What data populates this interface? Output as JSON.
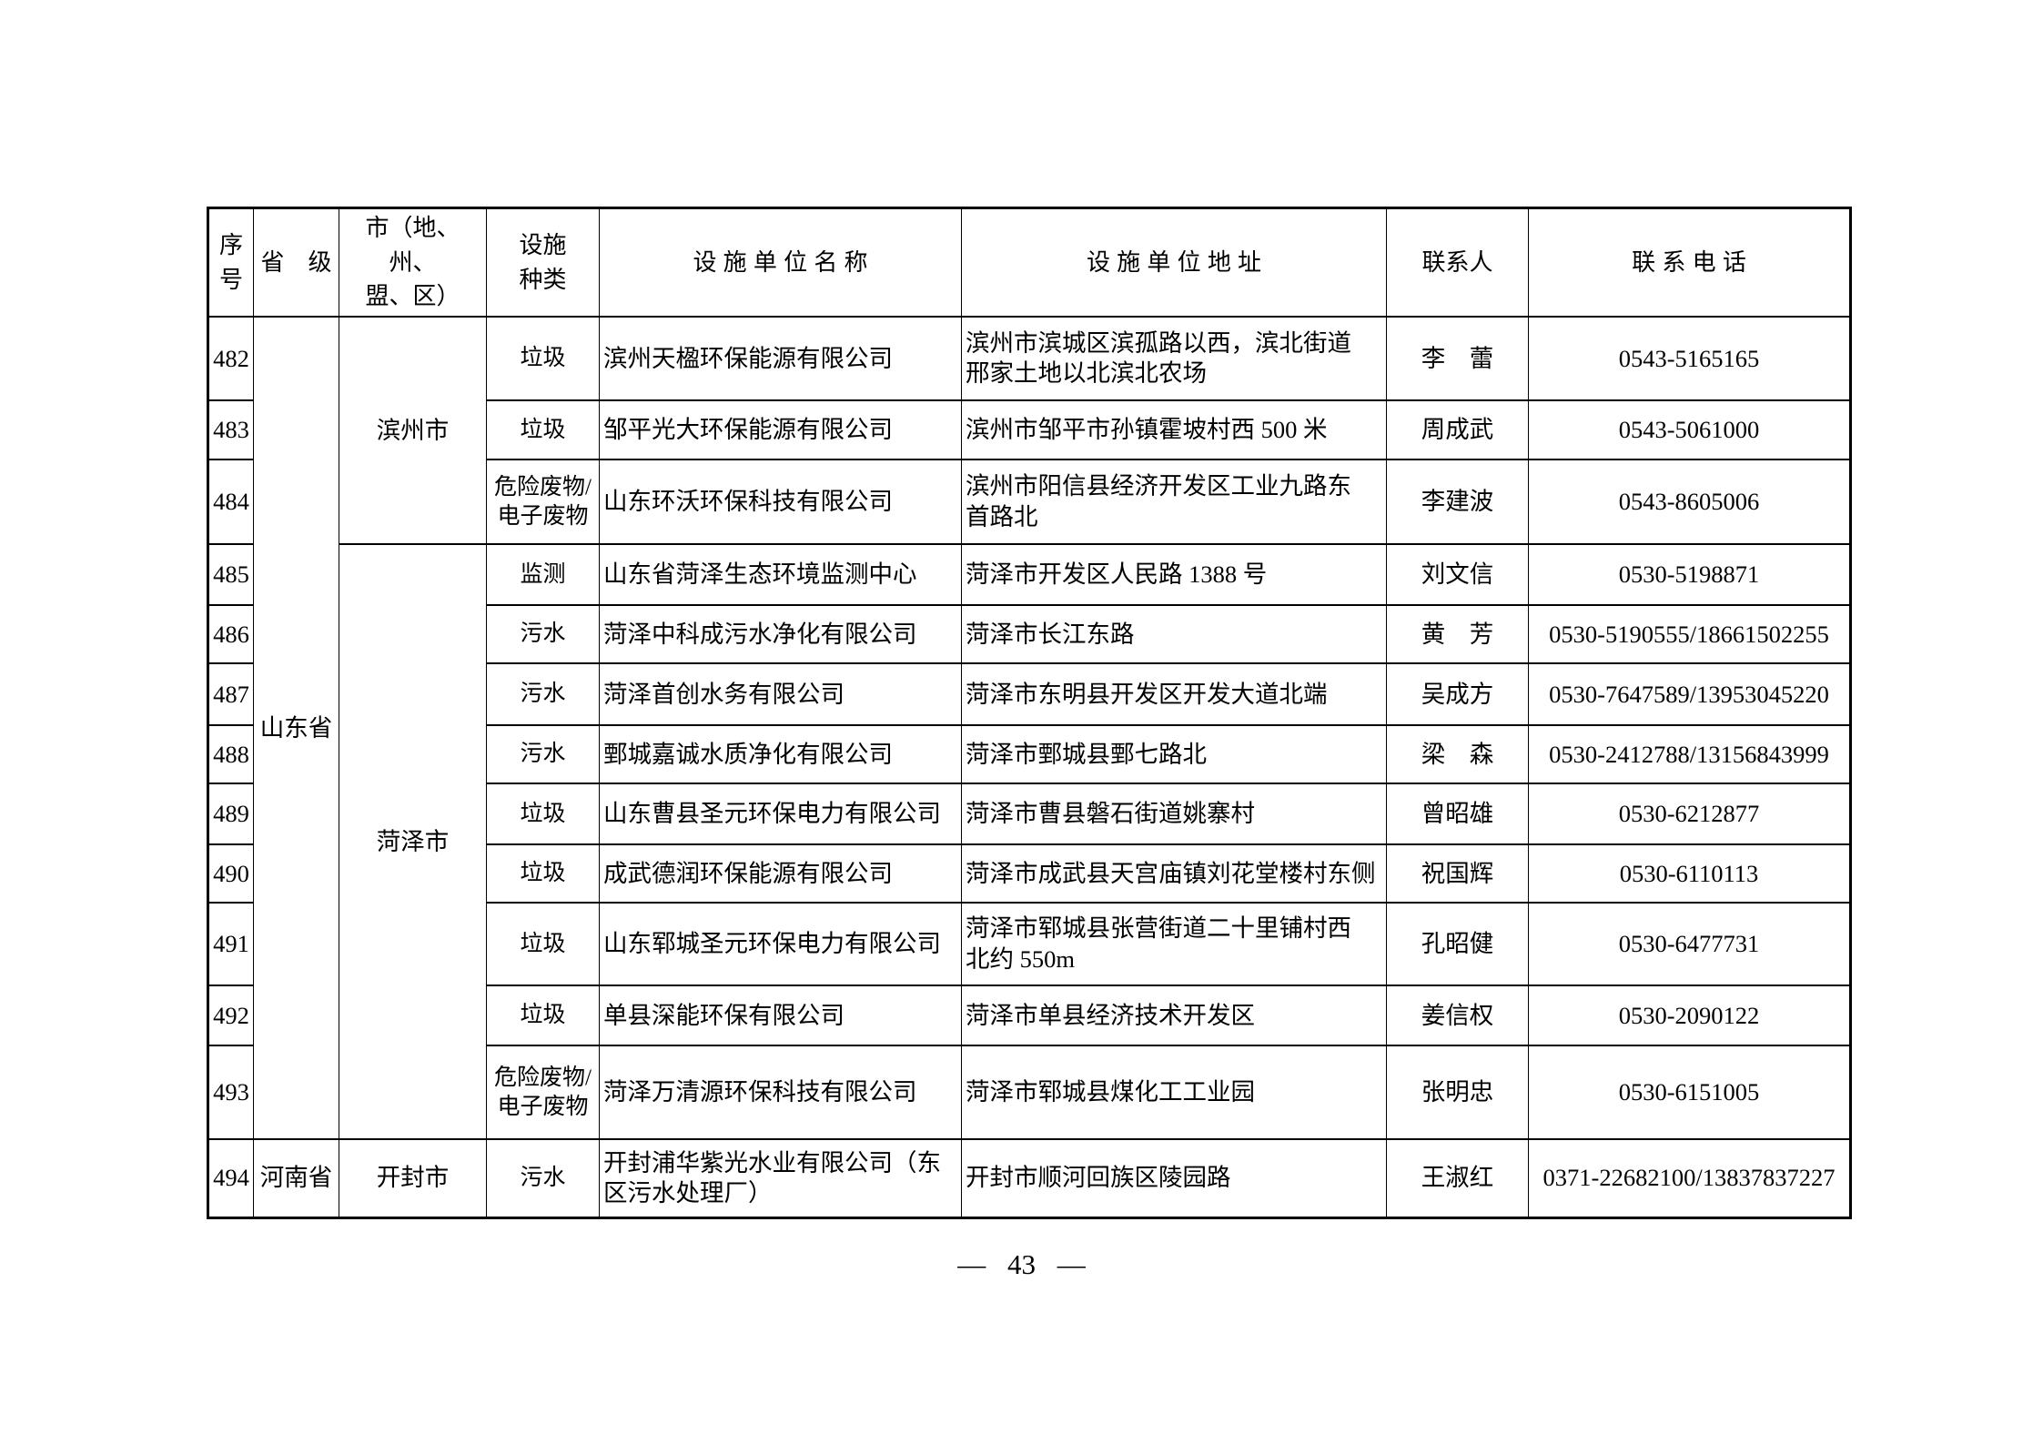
{
  "page": {
    "number_label": "— 43 —"
  },
  "table": {
    "headers": [
      "序\n号",
      "省　级",
      "市（地、州、\n盟、区）",
      "设施\n种类",
      "设 施 单 位 名 称",
      "设 施 单 位 地 址",
      "联系人",
      "联 系 电 话"
    ],
    "rows": [
      {
        "no": "482",
        "province": {
          "label": "山东省",
          "rowspan": 12
        },
        "city": {
          "label": "滨州市",
          "rowspan": 3
        },
        "type": "垃圾",
        "name": "滨州天楹环保能源有限公司",
        "address": "滨州市滨城区滨孤路以西，滨北街道\n邢家土地以北滨北农场",
        "contact": "李　蕾",
        "phone": "0543-5165165"
      },
      {
        "no": "483",
        "type": "垃圾",
        "name": "邹平光大环保能源有限公司",
        "address": "滨州市邹平市孙镇霍坡村西 500 米",
        "contact": "周成武",
        "phone": "0543-5061000"
      },
      {
        "no": "484",
        "type": "危险废物/\n电子废物",
        "name": "山东环沃环保科技有限公司",
        "address": "滨州市阳信县经济开发区工业九路东\n首路北",
        "contact": "李建波",
        "phone": "0543-8605006"
      },
      {
        "no": "485",
        "city": {
          "label": "菏泽市",
          "rowspan": 9
        },
        "type": "监测",
        "name": "山东省菏泽生态环境监测中心",
        "address": "菏泽市开发区人民路 1388 号",
        "contact": "刘文信",
        "phone": "0530-5198871"
      },
      {
        "no": "486",
        "type": "污水",
        "name": "菏泽中科成污水净化有限公司",
        "address": "菏泽市长江东路",
        "contact": "黄　芳",
        "phone": "0530-5190555/18661502255"
      },
      {
        "no": "487",
        "type": "污水",
        "name": "菏泽首创水务有限公司",
        "address": "菏泽市东明县开发区开发大道北端",
        "contact": "吴成方",
        "phone": "0530-7647589/13953045220"
      },
      {
        "no": "488",
        "type": "污水",
        "name": "鄄城嘉诚水质净化有限公司",
        "address": "菏泽市鄄城县鄄七路北",
        "contact": "梁　森",
        "phone": "0530-2412788/13156843999"
      },
      {
        "no": "489",
        "type": "垃圾",
        "name": "山东曹县圣元环保电力有限公司",
        "address": "菏泽市曹县磐石街道姚寨村",
        "contact": "曾昭雄",
        "phone": "0530-6212877"
      },
      {
        "no": "490",
        "type": "垃圾",
        "name": "成武德润环保能源有限公司",
        "address": "菏泽市成武县天宫庙镇刘花堂楼村东侧",
        "contact": "祝国辉",
        "phone": "0530-6110113"
      },
      {
        "no": "491",
        "type": "垃圾",
        "name": "山东郓城圣元环保电力有限公司",
        "address": "菏泽市郓城县张营街道二十里铺村西\n北约 550m",
        "contact": "孔昭健",
        "phone": "0530-6477731"
      },
      {
        "no": "492",
        "type": "垃圾",
        "name": "单县深能环保有限公司",
        "address": "菏泽市单县经济技术开发区",
        "contact": "姜信权",
        "phone": "0530-2090122"
      },
      {
        "no": "493",
        "type": "危险废物/\n电子废物",
        "name": "菏泽万清源环保科技有限公司",
        "address": "菏泽市郓城县煤化工工业园",
        "contact": "张明忠",
        "phone": "0530-6151005"
      },
      {
        "no": "494",
        "province": {
          "label": "河南省",
          "rowspan": 1
        },
        "city": {
          "label": "开封市",
          "rowspan": 1
        },
        "type": "污水",
        "name": "开封浦华紫光水业有限公司（东\n区污水处理厂）",
        "address": "开封市顺河回族区陵园路",
        "contact": "王淑红",
        "phone": "0371-22682100/13837837227"
      }
    ]
  }
}
